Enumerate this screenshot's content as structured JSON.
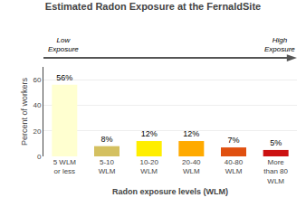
{
  "chart_data": {
    "type": "bar",
    "title": "Estimated Radon Exposure at the FernaldSite",
    "xlabel": "Radon exposure levels (WLM)",
    "ylabel": "Percent of workers",
    "categories": [
      "5 WLM\nor less",
      "5-10\nWLM",
      "10-20\nWLM",
      "20-40\nWLM",
      "40-80\nWLM",
      "More\nthan 80\nWLM"
    ],
    "values": [
      56,
      8,
      12,
      12,
      7,
      5
    ],
    "value_labels": [
      "56%",
      "8%",
      "12%",
      "12%",
      "7%",
      "5%"
    ],
    "data_labels": true,
    "colors": [
      "#ffffd0",
      "#d4c060",
      "#ffee00",
      "#ffaa00",
      "#e05010",
      "#cc1111"
    ],
    "ylim": [
      0,
      70
    ],
    "yticks": [
      0,
      20,
      40,
      60
    ],
    "grid": true,
    "annotations": [
      "Low\nExposure",
      "High\nExposure"
    ]
  }
}
